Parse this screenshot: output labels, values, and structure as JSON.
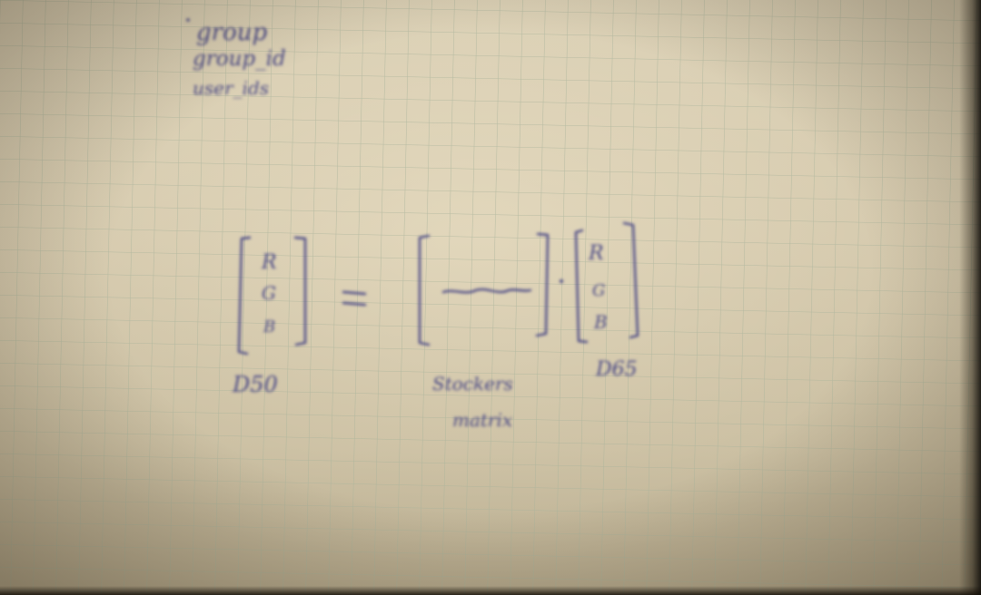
{
  "photo": {
    "subject": "graph-paper-notebook-page",
    "paper_color": "#d4c8ab",
    "grid_color": "#a9b39a",
    "ink_color": "#4b4a86"
  },
  "notes": {
    "field_list": [
      "group",
      "group_id",
      "user_ids"
    ]
  },
  "equation": {
    "lhs_vector": [
      "R",
      "G",
      "B"
    ],
    "rhs_vector": [
      "R",
      "G",
      "B"
    ],
    "lhs_label": "D50",
    "rhs_label": "D65",
    "matrix_caption_line1": "Stockers",
    "matrix_caption_line2": "matrix"
  }
}
